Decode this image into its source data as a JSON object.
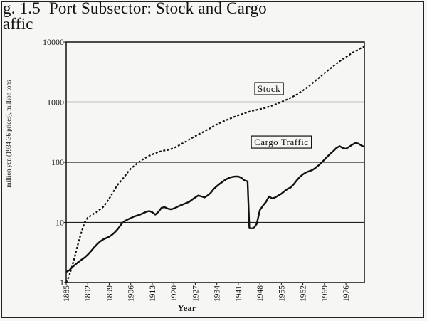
{
  "title_lines": [
    "g. 1.5  Port Subsector: Stock and Cargo",
    "affic"
  ],
  "chart_data": {
    "type": "line",
    "title": "g. 1.5  Port Subsector: Stock and Cargo affic",
    "xlabel": "Year",
    "ylabel": "million yen (1934-36 prices), million tons",
    "yscale": "log",
    "xlim": [
      1885,
      1982
    ],
    "ylim": [
      1,
      10000
    ],
    "y_ticks": [
      1,
      10,
      100,
      1000,
      10000
    ],
    "y_tick_labels": [
      "1",
      "10",
      "100",
      "1000",
      "10000"
    ],
    "x_ticks": [
      1885,
      1892,
      1899,
      1906,
      1913,
      1920,
      1927,
      1934,
      1941,
      1948,
      1955,
      1962,
      1969,
      1976
    ],
    "gridlines": "horizontal at y tick values",
    "legend": "none; series labelled by boxed annotations",
    "series": [
      {
        "name": "Stock",
        "style": "dashed",
        "points": [
          [
            1885,
            1.0
          ],
          [
            1886,
            1.3
          ],
          [
            1887,
            1.9
          ],
          [
            1888,
            3
          ],
          [
            1889,
            4.7
          ],
          [
            1890,
            7
          ],
          [
            1891,
            10
          ],
          [
            1892,
            12
          ],
          [
            1893,
            13
          ],
          [
            1894,
            14
          ],
          [
            1895,
            15
          ],
          [
            1896,
            16.5
          ],
          [
            1897,
            18
          ],
          [
            1898,
            21
          ],
          [
            1899,
            25
          ],
          [
            1900,
            30
          ],
          [
            1901,
            37
          ],
          [
            1902,
            44
          ],
          [
            1903,
            50
          ],
          [
            1904,
            58
          ],
          [
            1905,
            68
          ],
          [
            1906,
            78
          ],
          [
            1907,
            86
          ],
          [
            1908,
            95
          ],
          [
            1909,
            103
          ],
          [
            1910,
            112
          ],
          [
            1911,
            120
          ],
          [
            1912,
            128
          ],
          [
            1913,
            135
          ],
          [
            1914,
            142
          ],
          [
            1915,
            148
          ],
          [
            1916,
            153
          ],
          [
            1917,
            157
          ],
          [
            1918,
            160
          ],
          [
            1919,
            165
          ],
          [
            1920,
            173
          ],
          [
            1921,
            183
          ],
          [
            1922,
            195
          ],
          [
            1923,
            208
          ],
          [
            1924,
            222
          ],
          [
            1925,
            238
          ],
          [
            1926,
            255
          ],
          [
            1927,
            272
          ],
          [
            1928,
            290
          ],
          [
            1929,
            308
          ],
          [
            1930,
            328
          ],
          [
            1931,
            350
          ],
          [
            1932,
            372
          ],
          [
            1933,
            398
          ],
          [
            1934,
            425
          ],
          [
            1935,
            450
          ],
          [
            1936,
            475
          ],
          [
            1937,
            500
          ],
          [
            1938,
            525
          ],
          [
            1939,
            550
          ],
          [
            1940,
            578
          ],
          [
            1941,
            605
          ],
          [
            1942,
            630
          ],
          [
            1943,
            655
          ],
          [
            1944,
            680
          ],
          [
            1945,
            705
          ],
          [
            1946,
            725
          ],
          [
            1947,
            745
          ],
          [
            1948,
            765
          ],
          [
            1949,
            785
          ],
          [
            1950,
            810
          ],
          [
            1951,
            840
          ],
          [
            1952,
            875
          ],
          [
            1953,
            915
          ],
          [
            1954,
            960
          ],
          [
            1955,
            1010
          ],
          [
            1956,
            1060
          ],
          [
            1957,
            1115
          ],
          [
            1958,
            1180
          ],
          [
            1959,
            1255
          ],
          [
            1960,
            1340
          ],
          [
            1961,
            1440
          ],
          [
            1962,
            1560
          ],
          [
            1963,
            1700
          ],
          [
            1964,
            1860
          ],
          [
            1965,
            2040
          ],
          [
            1966,
            2250
          ],
          [
            1967,
            2480
          ],
          [
            1968,
            2740
          ],
          [
            1969,
            3020
          ],
          [
            1970,
            3320
          ],
          [
            1971,
            3650
          ],
          [
            1972,
            4000
          ],
          [
            1973,
            4380
          ],
          [
            1974,
            4780
          ],
          [
            1975,
            5200
          ],
          [
            1976,
            5630
          ],
          [
            1977,
            6080
          ],
          [
            1978,
            6550
          ],
          [
            1979,
            7020
          ],
          [
            1980,
            7500
          ],
          [
            1981,
            7950
          ],
          [
            1982,
            8400
          ]
        ]
      },
      {
        "name": "Cargo Traffic",
        "style": "solid",
        "points": [
          [
            1885,
            1.5
          ],
          [
            1886,
            1.6
          ],
          [
            1887,
            1.8
          ],
          [
            1888,
            2.0
          ],
          [
            1889,
            2.2
          ],
          [
            1890,
            2.4
          ],
          [
            1891,
            2.6
          ],
          [
            1892,
            2.9
          ],
          [
            1893,
            3.3
          ],
          [
            1894,
            3.8
          ],
          [
            1895,
            4.3
          ],
          [
            1896,
            4.8
          ],
          [
            1897,
            5.2
          ],
          [
            1898,
            5.5
          ],
          [
            1899,
            5.8
          ],
          [
            1900,
            6.3
          ],
          [
            1901,
            7.0
          ],
          [
            1902,
            8.0
          ],
          [
            1903,
            9.5
          ],
          [
            1904,
            10.5
          ],
          [
            1905,
            11.2
          ],
          [
            1906,
            11.8
          ],
          [
            1907,
            12.5
          ],
          [
            1908,
            13.0
          ],
          [
            1909,
            13.5
          ],
          [
            1910,
            14.2
          ],
          [
            1911,
            15.0
          ],
          [
            1912,
            15.5
          ],
          [
            1913,
            14.8
          ],
          [
            1914,
            13.5
          ],
          [
            1915,
            15
          ],
          [
            1916,
            17.5
          ],
          [
            1917,
            18
          ],
          [
            1918,
            17
          ],
          [
            1919,
            16.5
          ],
          [
            1920,
            17
          ],
          [
            1921,
            18
          ],
          [
            1922,
            19
          ],
          [
            1923,
            20
          ],
          [
            1924,
            21
          ],
          [
            1925,
            22
          ],
          [
            1926,
            24
          ],
          [
            1927,
            26
          ],
          [
            1928,
            28
          ],
          [
            1929,
            27
          ],
          [
            1930,
            26
          ],
          [
            1931,
            28
          ],
          [
            1932,
            31
          ],
          [
            1933,
            36
          ],
          [
            1934,
            40
          ],
          [
            1935,
            44
          ],
          [
            1936,
            48
          ],
          [
            1937,
            52
          ],
          [
            1938,
            55
          ],
          [
            1939,
            57
          ],
          [
            1940,
            58
          ],
          [
            1941,
            58
          ],
          [
            1942,
            55
          ],
          [
            1943,
            50
          ],
          [
            1944,
            48
          ],
          [
            1944.6,
            8
          ],
          [
            1945,
            8
          ],
          [
            1946,
            8
          ],
          [
            1947,
            9.5
          ],
          [
            1948,
            16
          ],
          [
            1949,
            19
          ],
          [
            1950,
            22
          ],
          [
            1951,
            27
          ],
          [
            1952,
            25
          ],
          [
            1953,
            26
          ],
          [
            1954,
            28
          ],
          [
            1955,
            30
          ],
          [
            1956,
            33
          ],
          [
            1957,
            36
          ],
          [
            1958,
            38
          ],
          [
            1959,
            43
          ],
          [
            1960,
            50
          ],
          [
            1961,
            57
          ],
          [
            1962,
            63
          ],
          [
            1963,
            68
          ],
          [
            1964,
            71
          ],
          [
            1965,
            74
          ],
          [
            1966,
            80
          ],
          [
            1967,
            88
          ],
          [
            1968,
            98
          ],
          [
            1969,
            110
          ],
          [
            1970,
            125
          ],
          [
            1971,
            140
          ],
          [
            1972,
            155
          ],
          [
            1973,
            175
          ],
          [
            1974,
            185
          ],
          [
            1975,
            172
          ],
          [
            1976,
            168
          ],
          [
            1977,
            180
          ],
          [
            1978,
            195
          ],
          [
            1979,
            208
          ],
          [
            1980,
            205
          ],
          [
            1981,
            190
          ],
          [
            1982,
            180
          ]
        ]
      }
    ],
    "annotations": [
      {
        "text": "Stock",
        "x": 1951,
        "y": 1700
      },
      {
        "text": "Cargo Traffic",
        "x": 1955,
        "y": 220
      }
    ]
  }
}
